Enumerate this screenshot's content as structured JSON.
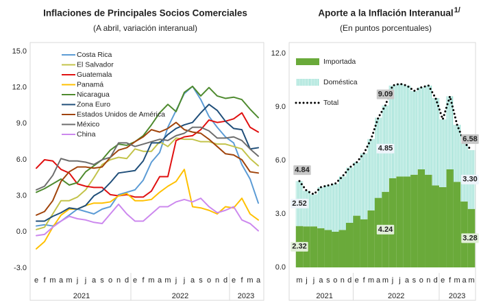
{
  "chart_data": [
    {
      "type": "line",
      "title": "Inflaciones de Principales Socios Comerciales",
      "subtitle": "(A abril, variación interanual)",
      "categories": [
        "e",
        "f",
        "m",
        "a",
        "m",
        "j",
        "j",
        "a",
        "s",
        "o",
        "n",
        "d",
        "e",
        "f",
        "m",
        "a",
        "m",
        "j",
        "j",
        "a",
        "s",
        "o",
        "n",
        "d",
        "e",
        "f",
        "m",
        "a"
      ],
      "x_groups": [
        {
          "label": "2021",
          "count": 12
        },
        {
          "label": "2022",
          "count": 12
        },
        {
          "label": "2023",
          "count": 4
        }
      ],
      "ylim": [
        -3,
        15
      ],
      "yticks": [
        {
          "value": -3,
          "label": "-3.0"
        },
        {
          "value": 0,
          "label": "0.0"
        },
        {
          "value": 3,
          "label": "3.0"
        },
        {
          "value": 6,
          "label": "6.0"
        },
        {
          "value": 9,
          "label": "9.0"
        },
        {
          "value": 12,
          "label": "12.0"
        },
        {
          "value": 15,
          "label": "15.0"
        }
      ],
      "grid": false,
      "legend": "upper left",
      "series": [
        {
          "name": "Costa Rica",
          "color": "#5b9bd5",
          "values": [
            0.5,
            0.6,
            0.5,
            0.9,
            1.4,
            1.9,
            1.7,
            1.5,
            1.9,
            2.1,
            3.1,
            3.3,
            3.5,
            4.3,
            5.8,
            6.6,
            8.7,
            10.1,
            11.5,
            12.1,
            11.0,
            9.6,
            8.7,
            7.9,
            7.4,
            5.6,
            4.4,
            2.4
          ]
        },
        {
          "name": "El Salvador",
          "color": "#c3c34a",
          "values": [
            0.2,
            0.4,
            1.5,
            2.6,
            2.6,
            2.9,
            3.5,
            4.5,
            5.6,
            6.0,
            6.2,
            6.1,
            6.9,
            6.7,
            6.7,
            7.5,
            7.1,
            7.8,
            7.7,
            7.7,
            7.5,
            7.5,
            7.3,
            7.3,
            7.1,
            6.9,
            6.1,
            5.5
          ]
        },
        {
          "name": "Guatemala",
          "color": "#e01010",
          "values": [
            5.3,
            6.0,
            5.9,
            5.2,
            4.9,
            4.0,
            3.8,
            3.7,
            3.7,
            3.1,
            3.0,
            3.1,
            2.9,
            2.9,
            3.4,
            4.6,
            4.6,
            7.6,
            7.9,
            8.0,
            8.5,
            9.3,
            9.1,
            9.2,
            9.4,
            9.9,
            8.7,
            8.3
          ]
        },
        {
          "name": "Panamá",
          "color": "#ffc000",
          "values": [
            -1.4,
            -0.8,
            0.4,
            1.4,
            1.9,
            1.9,
            2.2,
            2.4,
            2.4,
            2.5,
            3.0,
            3.2,
            2.6,
            2.6,
            2.7,
            3.3,
            3.8,
            4.2,
            5.2,
            2.1,
            2.0,
            1.8,
            1.5,
            2.1,
            2.0,
            2.8,
            1.5,
            1.0
          ]
        },
        {
          "name": "Nicaragua",
          "color": "#4e8a2e",
          "values": [
            3.3,
            3.6,
            4.0,
            4.4,
            3.9,
            4.1,
            5.0,
            5.5,
            6.0,
            6.8,
            7.3,
            7.2,
            7.5,
            8.0,
            8.9,
            9.9,
            10.6,
            10.0,
            11.6,
            12.1,
            11.3,
            12.0,
            11.3,
            11.1,
            11.2,
            11.0,
            10.2,
            9.5
          ]
        },
        {
          "name": "Zona Euro",
          "color": "#1f4e79",
          "values": [
            0.9,
            0.9,
            1.3,
            1.6,
            2.0,
            1.9,
            2.2,
            3.0,
            3.4,
            4.1,
            4.9,
            5.0,
            5.1,
            5.9,
            7.4,
            7.4,
            8.1,
            8.6,
            8.9,
            9.1,
            9.9,
            10.6,
            10.1,
            9.2,
            8.6,
            8.5,
            6.9,
            7.0
          ]
        },
        {
          "name": "Estados Unidos de América",
          "color": "#a0430a",
          "values": [
            1.4,
            1.7,
            2.6,
            4.2,
            5.0,
            5.4,
            5.4,
            5.3,
            5.4,
            6.2,
            6.8,
            7.0,
            7.5,
            7.9,
            8.5,
            8.3,
            8.6,
            9.1,
            8.5,
            8.3,
            8.2,
            7.7,
            7.1,
            6.5,
            6.4,
            6.0,
            5.0,
            4.9
          ]
        },
        {
          "name": "México",
          "color": "#6d6d6d",
          "values": [
            3.5,
            3.8,
            4.7,
            6.1,
            5.9,
            5.9,
            5.8,
            5.6,
            6.0,
            6.2,
            7.4,
            7.4,
            7.1,
            7.3,
            7.5,
            7.7,
            7.6,
            8.0,
            8.2,
            8.7,
            8.7,
            8.4,
            7.8,
            7.8,
            7.9,
            7.6,
            6.9,
            6.3
          ]
        },
        {
          "name": "China",
          "color": "#cc88ee",
          "values": [
            -0.3,
            -0.2,
            0.4,
            0.9,
            1.3,
            1.1,
            1.0,
            0.8,
            0.7,
            1.5,
            2.3,
            1.5,
            0.9,
            0.9,
            1.5,
            2.1,
            2.1,
            2.5,
            2.7,
            2.5,
            2.8,
            2.1,
            1.6,
            1.8,
            2.1,
            1.0,
            0.7,
            0.1
          ]
        }
      ]
    },
    {
      "type": "bar",
      "stacked": true,
      "title": "Aporte a la Inflación Interanual",
      "title_note": "1/",
      "subtitle": "(En puntos porcentuales)",
      "categories": [
        "m",
        "j",
        "j",
        "a",
        "s",
        "o",
        "n",
        "d",
        "e",
        "f",
        "m",
        "a",
        "m",
        "j",
        "j",
        "a",
        "s",
        "o",
        "n",
        "d",
        "e",
        "f",
        "m",
        "a",
        "m"
      ],
      "x_groups": [
        {
          "label": "2021",
          "count": 8
        },
        {
          "label": "2022",
          "count": 12
        },
        {
          "label": "2023",
          "count": 5
        }
      ],
      "ylim": [
        0,
        12
      ],
      "yticks": [
        {
          "value": 0,
          "label": "0.0"
        },
        {
          "value": 3,
          "label": "3.0"
        },
        {
          "value": 6,
          "label": "6.0"
        },
        {
          "value": 9,
          "label": "9.0"
        },
        {
          "value": 12,
          "label": "12.0"
        }
      ],
      "grid": false,
      "legend": "upper left",
      "series": [
        {
          "name": "Importada",
          "color": "#6aaa3a",
          "label_color": "#2f5a18",
          "values": [
            2.32,
            2.3,
            2.3,
            2.2,
            2.1,
            2.0,
            2.1,
            2.5,
            2.9,
            2.7,
            3.2,
            3.9,
            4.24,
            5.0,
            5.1,
            5.1,
            5.2,
            5.5,
            5.2,
            4.6,
            4.5,
            5.5,
            4.8,
            3.7,
            3.28
          ],
          "value_labels": [
            "2.32",
            null,
            null,
            null,
            null,
            null,
            null,
            null,
            null,
            null,
            null,
            null,
            "4.24",
            null,
            null,
            null,
            null,
            null,
            null,
            null,
            null,
            null,
            null,
            null,
            "3.28"
          ]
        },
        {
          "name": "Doméstica",
          "color": "#7fd6c8",
          "label_color": "#3a74b8",
          "values": [
            2.52,
            2.0,
            1.8,
            2.3,
            2.5,
            2.7,
            3.0,
            3.1,
            3.0,
            3.7,
            4.0,
            4.5,
            4.85,
            5.2,
            5.2,
            5.1,
            4.7,
            4.6,
            5.0,
            4.9,
            3.8,
            4.1,
            3.2,
            3.3,
            3.3
          ],
          "value_labels": [
            "2.52",
            null,
            null,
            null,
            null,
            null,
            null,
            null,
            null,
            null,
            null,
            null,
            "4.85",
            null,
            null,
            null,
            null,
            null,
            null,
            null,
            null,
            null,
            null,
            null,
            "3.30"
          ]
        },
        {
          "name": "Total",
          "type": "line",
          "color": "#000000",
          "label_color": "#000000",
          "values": [
            4.84,
            4.3,
            4.1,
            4.5,
            4.6,
            4.7,
            5.1,
            5.6,
            5.9,
            6.4,
            7.2,
            8.4,
            9.09,
            10.2,
            10.3,
            10.2,
            9.9,
            10.1,
            10.2,
            9.5,
            8.3,
            9.6,
            8.0,
            7.0,
            6.58
          ],
          "value_labels": [
            "4.84",
            null,
            null,
            null,
            null,
            null,
            null,
            null,
            null,
            null,
            null,
            null,
            "9.09",
            null,
            null,
            null,
            null,
            null,
            null,
            null,
            null,
            null,
            null,
            null,
            "6.58"
          ]
        }
      ]
    }
  ]
}
